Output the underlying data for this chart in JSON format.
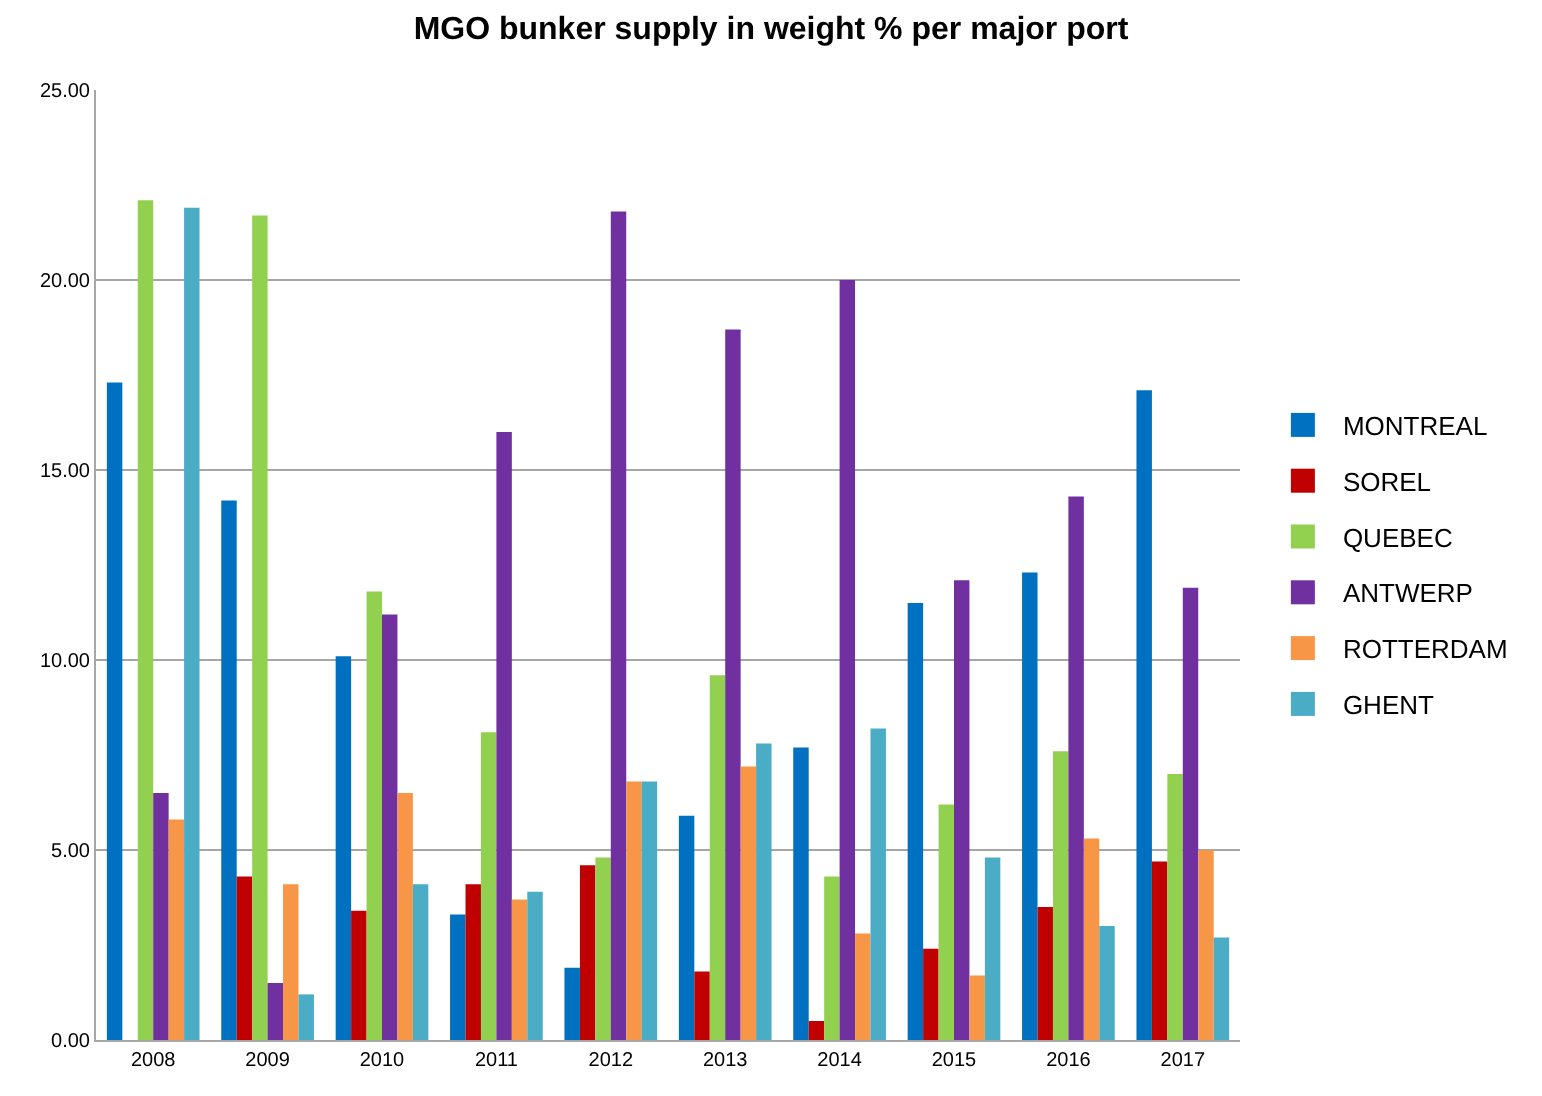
{
  "chart_data": {
    "type": "bar",
    "title": "MGO bunker supply in weight % per major port",
    "categories": [
      "2008",
      "2009",
      "2010",
      "2011",
      "2012",
      "2013",
      "2014",
      "2015",
      "2016",
      "2017"
    ],
    "series": [
      {
        "name": "MONTREAL",
        "color": "#0070c0",
        "values": [
          17.3,
          14.2,
          10.1,
          3.3,
          1.9,
          5.9,
          7.7,
          11.5,
          12.3,
          17.1
        ]
      },
      {
        "name": "SOREL",
        "color": "#c00000",
        "values": [
          null,
          4.3,
          3.4,
          4.1,
          4.6,
          1.8,
          0.5,
          2.4,
          3.5,
          4.7
        ]
      },
      {
        "name": "QUEBEC",
        "color": "#92d050",
        "values": [
          22.1,
          21.7,
          11.8,
          8.1,
          4.8,
          9.6,
          4.3,
          6.2,
          7.6,
          7.0
        ]
      },
      {
        "name": "ANTWERP",
        "color": "#7030a0",
        "values": [
          6.5,
          1.5,
          11.2,
          16.0,
          21.8,
          18.7,
          20.0,
          12.1,
          14.3,
          11.9
        ]
      },
      {
        "name": "ROTTERDAM",
        "color": "#f79646",
        "values": [
          5.8,
          4.1,
          6.5,
          3.7,
          6.8,
          7.2,
          2.8,
          1.7,
          5.3,
          5.0
        ]
      },
      {
        "name": "GHENT",
        "color": "#4bacc6",
        "values": [
          21.9,
          1.2,
          4.1,
          3.9,
          6.8,
          7.8,
          8.2,
          4.8,
          3.0,
          2.7
        ]
      }
    ],
    "ylim": [
      0,
      25
    ],
    "yticks": [
      {
        "value": 0,
        "label": "0.00"
      },
      {
        "value": 5,
        "label": "5.00"
      },
      {
        "value": 10,
        "label": "10.00"
      },
      {
        "value": 15,
        "label": "15.00"
      },
      {
        "value": 20,
        "label": "20.00"
      },
      {
        "value": 25,
        "label": "25.00"
      }
    ],
    "grid": "y",
    "legend": "right"
  }
}
